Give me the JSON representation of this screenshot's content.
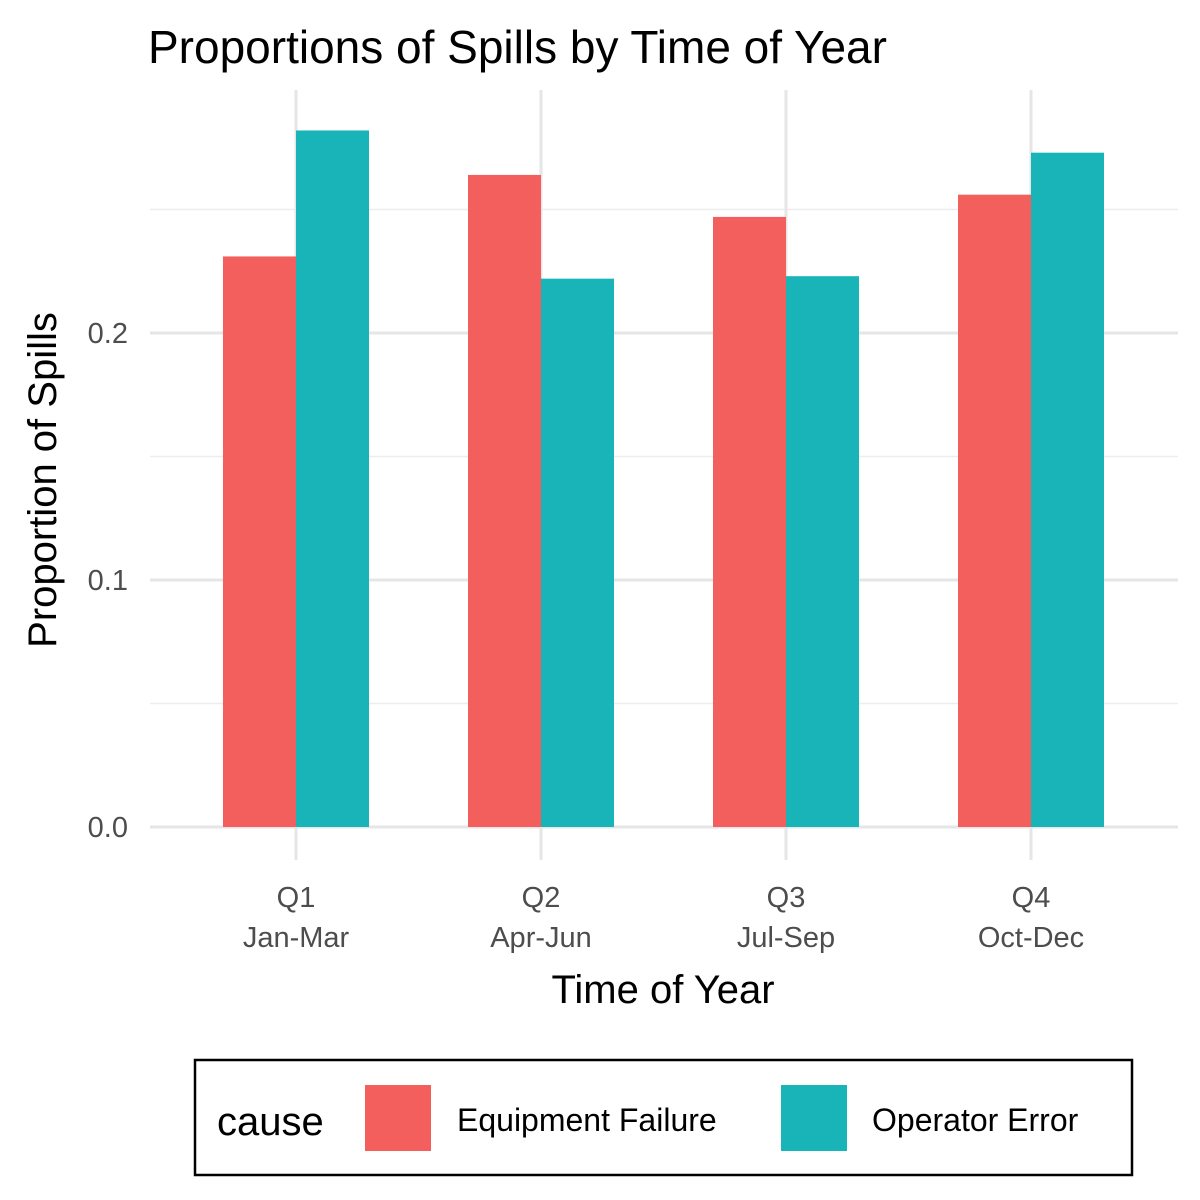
{
  "chart_data": {
    "type": "bar",
    "title": "Proportions of Spills by Time of Year",
    "xlabel": "Time of Year",
    "ylabel": "Proportion of Spills",
    "categories": [
      {
        "line1": "Q1",
        "line2": "Jan-Mar"
      },
      {
        "line1": "Q2",
        "line2": "Apr-Jun"
      },
      {
        "line1": "Q3",
        "line2": "Jul-Sep"
      },
      {
        "line1": "Q4",
        "line2": "Oct-Dec"
      }
    ],
    "series": [
      {
        "name": "Equipment Failure",
        "color": "#F35F5C",
        "values": [
          0.231,
          0.264,
          0.247,
          0.256
        ]
      },
      {
        "name": "Operator Error",
        "color": "#18B4B8",
        "values": [
          0.282,
          0.222,
          0.223,
          0.273
        ]
      }
    ],
    "y_ticks": [
      "0.0",
      "0.1",
      "0.2"
    ],
    "ylim": [
      0,
      0.3
    ],
    "legend": {
      "title": "cause",
      "position": "bottom"
    },
    "grid": true
  }
}
